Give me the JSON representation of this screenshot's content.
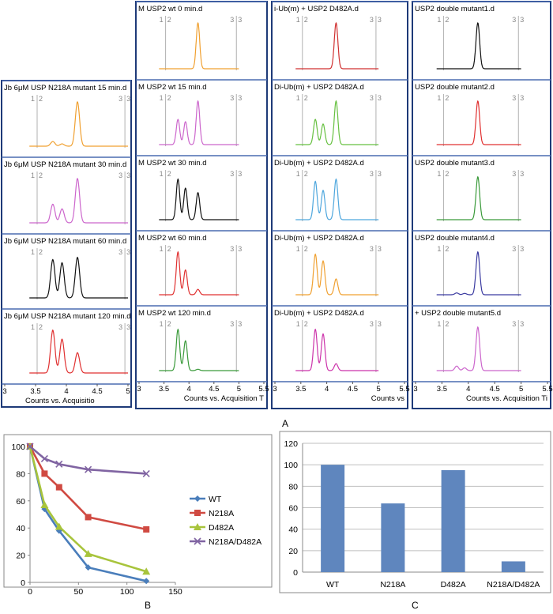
{
  "labels": {
    "panel_a": "A",
    "panel_b": "B",
    "panel_c": "C"
  },
  "trace_panels": {
    "tick_labels": [
      "1",
      "2",
      "3",
      "3"
    ],
    "columns": [
      {
        "axis_ticks": [
          "3",
          "3.5",
          "4",
          "4.5",
          "5"
        ],
        "axis_title": "Counts vs. Acquisitio",
        "cells": [
          {
            "title": "Jb 6μM USP N218A mutant 15 min.d",
            "color": "#f0a030",
            "peaks": [
              0.1,
              0.05,
              0.95
            ]
          },
          {
            "title": "Jb 6μM USP N218A mutant 30 min.d",
            "color": "#cc66cc",
            "peaks": [
              0.4,
              0.3,
              0.95
            ]
          },
          {
            "title": "Jb 6μM USP N218A mutant 60 min.d",
            "color": "#111111",
            "peaks": [
              0.85,
              0.78,
              0.9
            ]
          },
          {
            "title": "Jb 6μM USP N218A mutant 120 min.d",
            "color": "#e03030",
            "peaks": [
              0.95,
              0.75,
              0.45
            ]
          }
        ]
      },
      {
        "axis_ticks": [
          "3",
          "3.5",
          "4",
          "4.5",
          "5",
          "5.5"
        ],
        "axis_title": "Counts vs. Acquisition T",
        "cells": [
          {
            "title": "M USP2 wt 0 min.d",
            "color": "#f0a030",
            "peaks": [
              0.0,
              0.0,
              0.95
            ]
          },
          {
            "title": "M USP2 wt 15 min.d",
            "color": "#cc66cc",
            "peaks": [
              0.55,
              0.5,
              0.95
            ]
          },
          {
            "title": "M USP2 wt 30 min.d",
            "color": "#111111",
            "peaks": [
              0.9,
              0.7,
              0.6
            ]
          },
          {
            "title": "M USP2 wt 60 min.d",
            "color": "#e03030",
            "peaks": [
              0.95,
              0.55,
              0.12
            ]
          },
          {
            "title": "M USP2 wt 120 min.d",
            "color": "#3a9a3a",
            "peaks": [
              0.9,
              0.65,
              0.03
            ]
          }
        ]
      },
      {
        "axis_ticks": [
          "3",
          "3.5",
          "4",
          "4.5",
          "5",
          "5.5"
        ],
        "axis_title": "Counts vs",
        "cells": [
          {
            "title": "i-Ub(m) + USP2 D482A.d",
            "color": "#d03030",
            "peaks": [
              0.0,
              0.0,
              0.95
            ]
          },
          {
            "title": "Di-Ub(m) + USP2 D482A.d",
            "color": "#66c040",
            "peaks": [
              0.55,
              0.45,
              0.95
            ]
          },
          {
            "title": "Di-Ub(m) + USP2 D482A.d",
            "color": "#4da6dd",
            "peaks": [
              0.85,
              0.65,
              0.9
            ]
          },
          {
            "title": "Di-Ub(m) + USP2 D482A.d",
            "color": "#f0a030",
            "peaks": [
              0.9,
              0.75,
              0.35
            ]
          },
          {
            "title": "Di-Ub(m) + USP2 D482A.d",
            "color": "#cc33aa",
            "peaks": [
              0.9,
              0.8,
              0.15
            ]
          }
        ]
      },
      {
        "axis_ticks": [
          "3",
          "3.5",
          "4",
          "4.5",
          "5",
          "5.5"
        ],
        "axis_title": "Counts vs. Acquisition Ti",
        "cells": [
          {
            "title": "USP2 double mutant1.d",
            "color": "#111111",
            "peaks": [
              0.0,
              0.0,
              0.95
            ]
          },
          {
            "title": "USP2 double mutant2.d",
            "color": "#e03030",
            "peaks": [
              0.0,
              0.0,
              0.95
            ]
          },
          {
            "title": "USP2 double mutant3.d",
            "color": "#3a9a3a",
            "peaks": [
              0.0,
              0.0,
              0.95
            ]
          },
          {
            "title": "USP2 double mutant4.d",
            "color": "#3a3aa0",
            "peaks": [
              0.04,
              0.03,
              0.95
            ]
          },
          {
            "title": "+ USP2 double mutant5.d",
            "color": "#cc66cc",
            "peaks": [
              0.1,
              0.06,
              0.95
            ]
          }
        ]
      }
    ]
  },
  "chart_data": [
    {
      "type": "line",
      "panel": "B",
      "x": [
        0,
        15,
        30,
        60,
        120
      ],
      "xlim": [
        0,
        150
      ],
      "ylim": [
        0,
        100
      ],
      "xticks": [
        "0",
        "50",
        "100",
        "150"
      ],
      "yticks": [
        "0",
        "20",
        "40",
        "60",
        "80",
        "100"
      ],
      "series": [
        {
          "name": "WT",
          "color": "#4a7ebb",
          "marker": "diamond",
          "values": [
            100,
            54,
            38,
            11,
            1
          ]
        },
        {
          "name": "N218A",
          "color": "#d04a42",
          "marker": "square",
          "values": [
            100,
            80,
            70,
            48,
            39
          ]
        },
        {
          "name": "D482A",
          "color": "#a8c43c",
          "marker": "triangle",
          "values": [
            100,
            57,
            41,
            21,
            8
          ]
        },
        {
          "name": "N218A/D482A",
          "color": "#8064a2",
          "marker": "x",
          "values": [
            100,
            91,
            87,
            83,
            80
          ]
        }
      ]
    },
    {
      "type": "bar",
      "panel": "C",
      "categories": [
        "WT",
        "N218A",
        "D482A",
        "N218A/D482A"
      ],
      "values": [
        100,
        64,
        95,
        10
      ],
      "ylim": [
        0,
        120
      ],
      "yticks": [
        "0",
        "20",
        "40",
        "60",
        "80",
        "100",
        "120"
      ],
      "color": "#5f86be"
    }
  ]
}
